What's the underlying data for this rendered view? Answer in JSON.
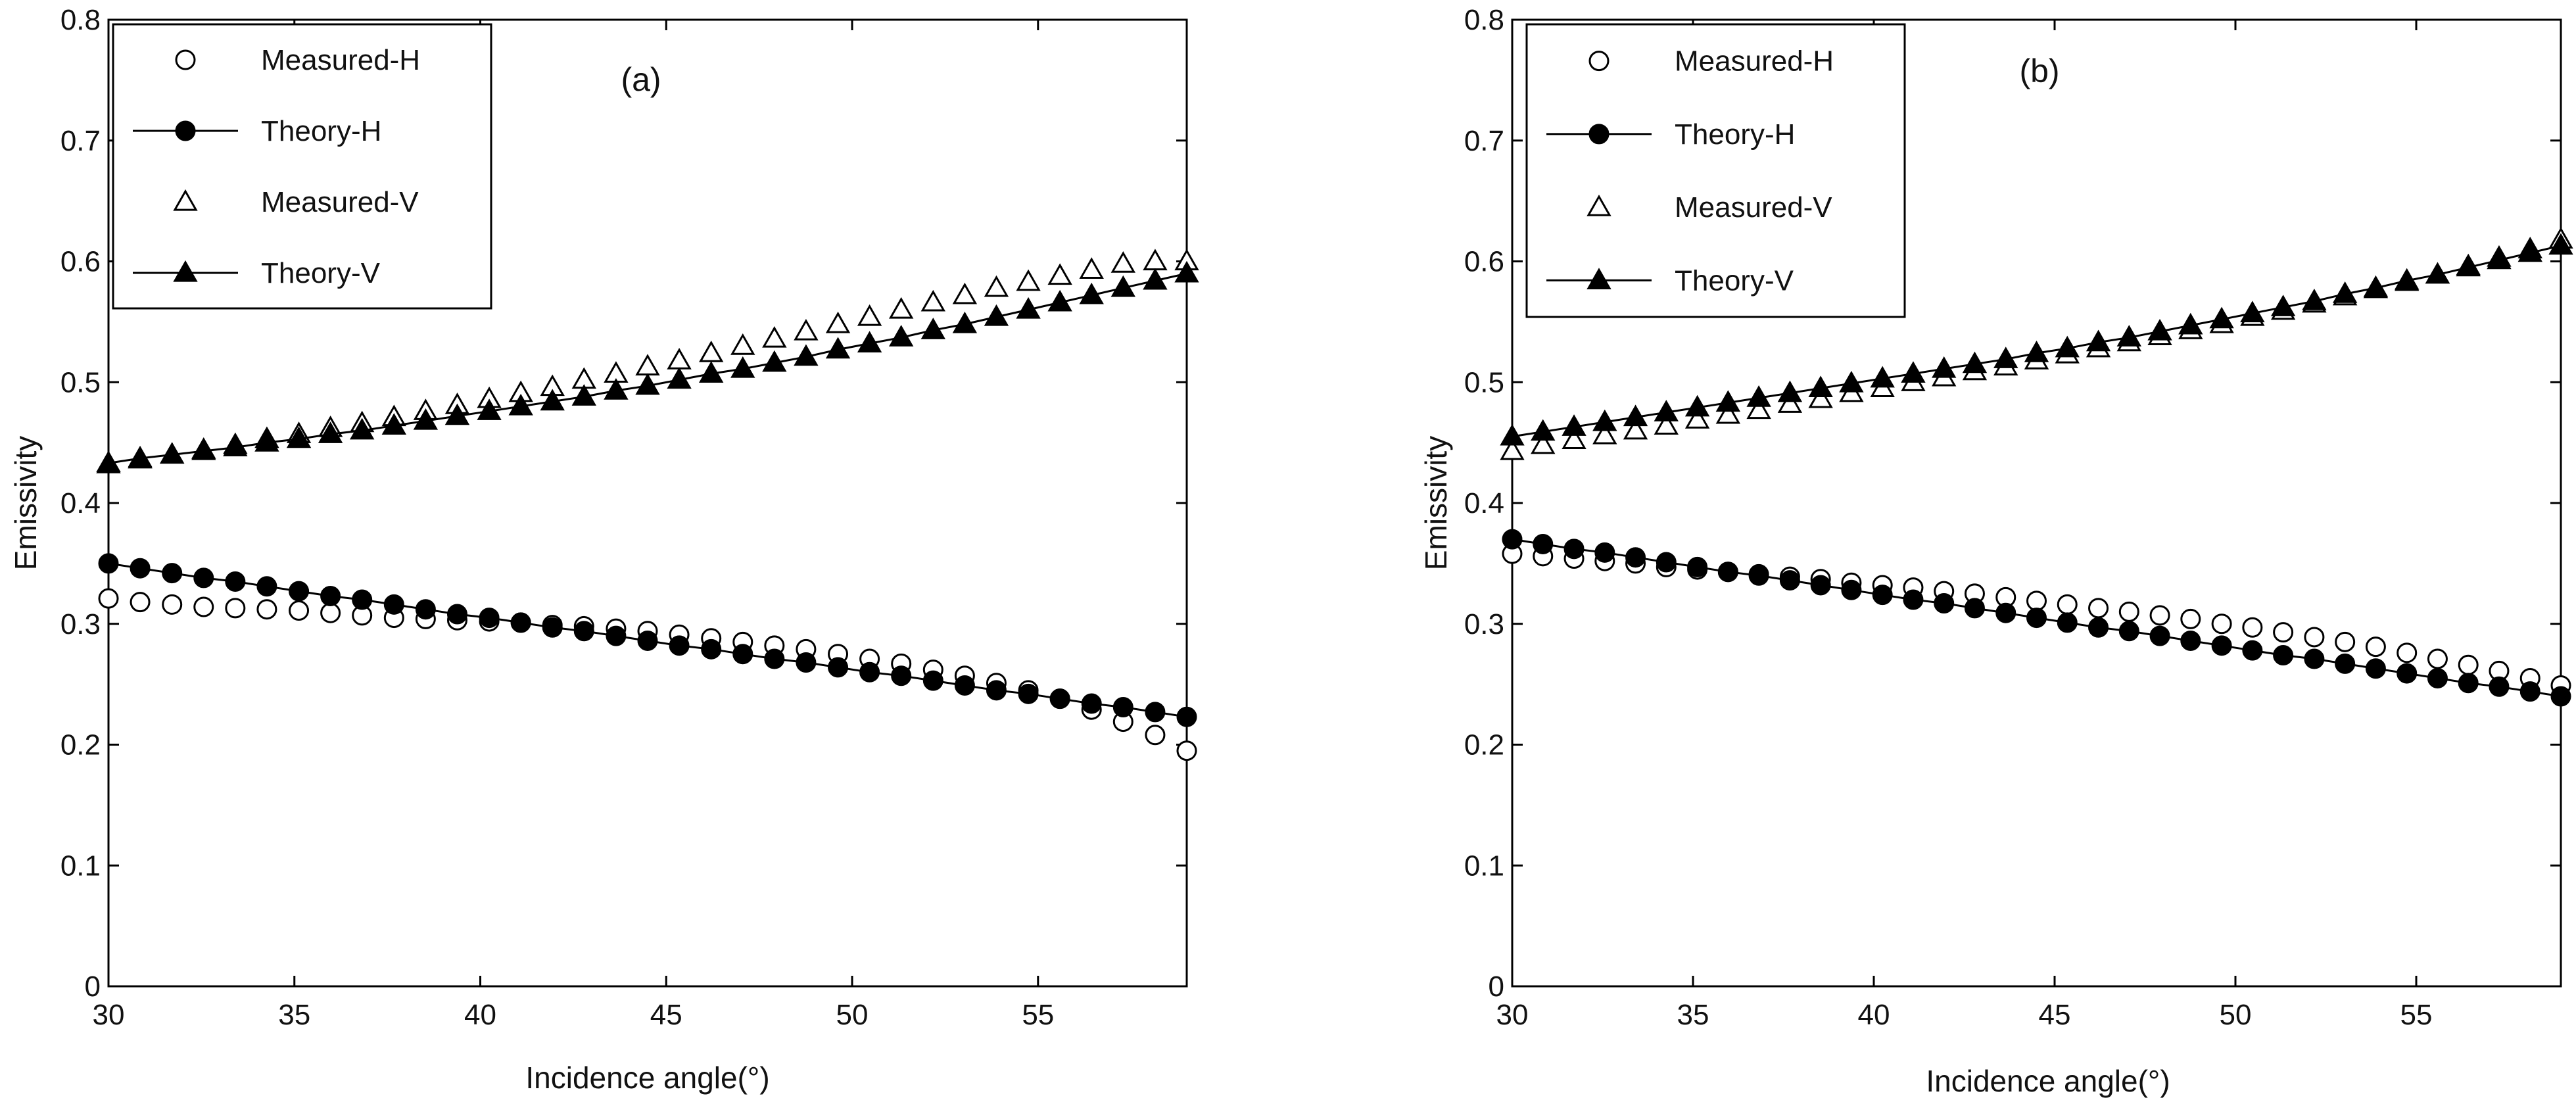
{
  "chart_data": [
    {
      "type": "scatter",
      "panel_label": "(a)",
      "xlabel": "Incidence angle(°)",
      "ylabel": "Emissivity",
      "xlim": [
        30,
        59
      ],
      "ylim": [
        0,
        0.8
      ],
      "x_ticks": [
        30,
        35,
        40,
        45,
        50,
        55
      ],
      "y_ticks": [
        0,
        0.1,
        0.2,
        0.3,
        0.4,
        0.5,
        0.6,
        0.7,
        0.8
      ],
      "grid": false,
      "legend_position": "top-left",
      "x": [
        30.0,
        30.85,
        31.71,
        32.56,
        33.41,
        34.26,
        35.12,
        35.97,
        36.82,
        37.68,
        38.53,
        39.38,
        40.24,
        41.09,
        41.94,
        42.79,
        43.65,
        44.5,
        45.35,
        46.21,
        47.06,
        47.91,
        48.76,
        49.62,
        50.47,
        51.32,
        52.18,
        53.03,
        53.88,
        54.74,
        55.59,
        56.44,
        57.29,
        58.15,
        59.0
      ],
      "series": [
        {
          "name": "Measured-H",
          "marker": "open-circle",
          "line": false,
          "values": [
            0.321,
            0.318,
            0.316,
            0.314,
            0.313,
            0.312,
            0.311,
            0.309,
            0.307,
            0.305,
            0.304,
            0.303,
            0.302,
            0.301,
            0.299,
            0.298,
            0.296,
            0.294,
            0.291,
            0.288,
            0.285,
            0.282,
            0.279,
            0.275,
            0.271,
            0.267,
            0.262,
            0.257,
            0.251,
            0.245,
            0.238,
            0.229,
            0.219,
            0.208,
            0.195
          ]
        },
        {
          "name": "Theory-H",
          "marker": "filled-circle",
          "line": true,
          "values": [
            0.35,
            0.346,
            0.342,
            0.338,
            0.335,
            0.331,
            0.327,
            0.323,
            0.32,
            0.316,
            0.312,
            0.308,
            0.305,
            0.301,
            0.297,
            0.294,
            0.29,
            0.286,
            0.282,
            0.279,
            0.275,
            0.271,
            0.268,
            0.264,
            0.26,
            0.257,
            0.253,
            0.249,
            0.245,
            0.242,
            0.238,
            0.234,
            0.231,
            0.227,
            0.223
          ]
        },
        {
          "name": "Measured-V",
          "marker": "open-triangle",
          "line": false,
          "values": [
            0.432,
            0.436,
            0.44,
            0.444,
            0.448,
            0.453,
            0.457,
            0.462,
            0.466,
            0.471,
            0.476,
            0.481,
            0.486,
            0.491,
            0.496,
            0.502,
            0.507,
            0.513,
            0.518,
            0.524,
            0.53,
            0.536,
            0.542,
            0.548,
            0.554,
            0.56,
            0.566,
            0.572,
            0.578,
            0.583,
            0.588,
            0.593,
            0.598,
            0.6,
            0.6
          ]
        },
        {
          "name": "Theory-V",
          "marker": "filled-triangle",
          "line": true,
          "values": [
            0.433,
            0.437,
            0.44,
            0.443,
            0.446,
            0.45,
            0.453,
            0.457,
            0.46,
            0.464,
            0.468,
            0.472,
            0.476,
            0.48,
            0.484,
            0.488,
            0.493,
            0.497,
            0.502,
            0.507,
            0.511,
            0.516,
            0.521,
            0.527,
            0.532,
            0.537,
            0.543,
            0.548,
            0.554,
            0.56,
            0.566,
            0.572,
            0.578,
            0.584,
            0.59
          ]
        }
      ]
    },
    {
      "type": "scatter",
      "panel_label": "(b)",
      "xlabel": "Incidence angle(°)",
      "ylabel": "Emissivity",
      "xlim": [
        30,
        59
      ],
      "ylim": [
        0,
        0.8
      ],
      "x_ticks": [
        30,
        35,
        40,
        45,
        50,
        55
      ],
      "y_ticks": [
        0,
        0.1,
        0.2,
        0.3,
        0.4,
        0.5,
        0.6,
        0.7,
        0.8
      ],
      "grid": false,
      "legend_position": "top-left",
      "x": [
        30.0,
        30.85,
        31.71,
        32.56,
        33.41,
        34.26,
        35.12,
        35.97,
        36.82,
        37.68,
        38.53,
        39.38,
        40.24,
        41.09,
        41.94,
        42.79,
        43.65,
        44.5,
        45.35,
        46.21,
        47.06,
        47.91,
        48.76,
        49.62,
        50.47,
        51.32,
        52.18,
        53.03,
        53.88,
        54.74,
        55.59,
        56.44,
        57.29,
        58.15,
        59.0
      ],
      "series": [
        {
          "name": "Measured-H",
          "marker": "open-circle",
          "line": false,
          "values": [
            0.358,
            0.356,
            0.354,
            0.352,
            0.35,
            0.347,
            0.345,
            0.343,
            0.341,
            0.339,
            0.337,
            0.334,
            0.332,
            0.33,
            0.327,
            0.325,
            0.322,
            0.319,
            0.316,
            0.313,
            0.31,
            0.307,
            0.304,
            0.3,
            0.297,
            0.293,
            0.289,
            0.285,
            0.281,
            0.276,
            0.271,
            0.266,
            0.261,
            0.255,
            0.249
          ]
        },
        {
          "name": "Theory-H",
          "marker": "filled-circle",
          "line": true,
          "values": [
            0.37,
            0.366,
            0.362,
            0.359,
            0.355,
            0.351,
            0.347,
            0.343,
            0.34,
            0.336,
            0.332,
            0.328,
            0.324,
            0.32,
            0.317,
            0.313,
            0.309,
            0.305,
            0.301,
            0.297,
            0.294,
            0.29,
            0.286,
            0.282,
            0.278,
            0.274,
            0.271,
            0.267,
            0.263,
            0.259,
            0.255,
            0.251,
            0.248,
            0.244,
            0.24
          ]
        },
        {
          "name": "Measured-V",
          "marker": "open-triangle",
          "line": false,
          "values": [
            0.443,
            0.448,
            0.452,
            0.456,
            0.46,
            0.464,
            0.469,
            0.473,
            0.477,
            0.482,
            0.486,
            0.491,
            0.495,
            0.5,
            0.504,
            0.509,
            0.513,
            0.518,
            0.523,
            0.528,
            0.533,
            0.538,
            0.543,
            0.548,
            0.554,
            0.559,
            0.565,
            0.571,
            0.577,
            0.583,
            0.589,
            0.596,
            0.603,
            0.61,
            0.618
          ]
        },
        {
          "name": "Theory-V",
          "marker": "filled-triangle",
          "line": true,
          "values": [
            0.455,
            0.459,
            0.463,
            0.467,
            0.471,
            0.475,
            0.479,
            0.483,
            0.487,
            0.491,
            0.495,
            0.499,
            0.503,
            0.507,
            0.511,
            0.515,
            0.519,
            0.524,
            0.528,
            0.533,
            0.537,
            0.542,
            0.547,
            0.552,
            0.557,
            0.562,
            0.567,
            0.573,
            0.578,
            0.584,
            0.589,
            0.595,
            0.601,
            0.607,
            0.613
          ]
        }
      ]
    }
  ]
}
